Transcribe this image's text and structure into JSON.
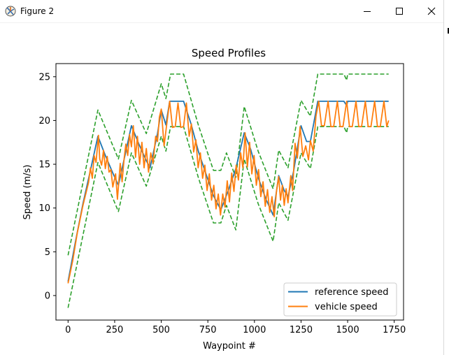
{
  "window": {
    "title": "Figure 2",
    "controls": [
      "minimize",
      "maximize",
      "close"
    ]
  },
  "chart_data": {
    "type": "line",
    "title": "Speed Profiles",
    "xlabel": "Waypoint #",
    "ylabel": "Speed (m/s)",
    "xlim": [
      -65,
      1800
    ],
    "ylim": [
      -2.8,
      26.5
    ],
    "xticks": [
      0,
      250,
      500,
      750,
      1000,
      1250,
      1500,
      1750
    ],
    "yticks": [
      0,
      5,
      10,
      15,
      20,
      25
    ],
    "grid": false,
    "legend_position": "lower-right",
    "colors": {
      "reference": "#1f77b4",
      "vehicle": "#ff7f0e",
      "bounds": "#2ca02c"
    },
    "series": [
      {
        "name": "reference speed",
        "style": "solid",
        "color": "#1f77b4",
        "points": [
          [
            0,
            1.6
          ],
          [
            40,
            6.2
          ],
          [
            80,
            10.5
          ],
          [
            120,
            14.3
          ],
          [
            160,
            18.2
          ],
          [
            200,
            16.0
          ],
          [
            240,
            14.0
          ],
          [
            270,
            12.6
          ],
          [
            300,
            15.5
          ],
          [
            340,
            19.4
          ],
          [
            380,
            17.3
          ],
          [
            420,
            15.4
          ],
          [
            440,
            14.6
          ],
          [
            480,
            18.5
          ],
          [
            500,
            21.2
          ],
          [
            525,
            19.5
          ],
          [
            545,
            22.2
          ],
          [
            620,
            22.2
          ],
          [
            660,
            19.6
          ],
          [
            700,
            16.4
          ],
          [
            740,
            13.9
          ],
          [
            780,
            11.4
          ],
          [
            820,
            9.8
          ],
          [
            860,
            12.0
          ],
          [
            900,
            14.5
          ],
          [
            945,
            18.6
          ],
          [
            980,
            16.7
          ],
          [
            1020,
            13.5
          ],
          [
            1060,
            11.1
          ],
          [
            1100,
            9.2
          ],
          [
            1130,
            13.7
          ],
          [
            1160,
            12.0
          ],
          [
            1180,
            11.3
          ],
          [
            1210,
            14.2
          ],
          [
            1250,
            19.4
          ],
          [
            1280,
            17.6
          ],
          [
            1300,
            17.6
          ],
          [
            1340,
            22.2
          ],
          [
            1480,
            22.2
          ],
          [
            1495,
            21.7
          ],
          [
            1500,
            22.2
          ],
          [
            1720,
            22.2
          ]
        ]
      },
      {
        "name": "vehicle speed",
        "style": "solid",
        "color": "#ff7f0e",
        "points": [
          [
            0,
            1.4
          ],
          [
            25,
            4.0
          ],
          [
            50,
            7.2
          ],
          [
            80,
            10.3
          ],
          [
            110,
            12.9
          ],
          [
            120,
            14.6
          ],
          [
            130,
            13.4
          ],
          [
            140,
            16.0
          ],
          [
            150,
            15.2
          ],
          [
            163,
            18.3
          ],
          [
            170,
            15.6
          ],
          [
            180,
            14.9
          ],
          [
            190,
            16.6
          ],
          [
            200,
            14.5
          ],
          [
            210,
            15.9
          ],
          [
            220,
            14.1
          ],
          [
            230,
            14.4
          ],
          [
            240,
            12.4
          ],
          [
            255,
            13.9
          ],
          [
            265,
            11.0
          ],
          [
            280,
            15.1
          ],
          [
            290,
            13.0
          ],
          [
            300,
            15.5
          ],
          [
            310,
            17.3
          ],
          [
            320,
            16.0
          ],
          [
            330,
            18.4
          ],
          [
            340,
            17.0
          ],
          [
            350,
            19.4
          ],
          [
            362,
            15.8
          ],
          [
            372,
            18.2
          ],
          [
            384,
            15.0
          ],
          [
            396,
            17.5
          ],
          [
            408,
            14.6
          ],
          [
            420,
            16.8
          ],
          [
            432,
            14.1
          ],
          [
            444,
            16.3
          ],
          [
            456,
            15.1
          ],
          [
            470,
            18.2
          ],
          [
            480,
            17.6
          ],
          [
            490,
            20.4
          ],
          [
            500,
            21.3
          ],
          [
            515,
            17.1
          ],
          [
            530,
            19.7
          ],
          [
            545,
            22.2
          ],
          [
            560,
            19.2
          ],
          [
            575,
            19.3
          ],
          [
            590,
            22.0
          ],
          [
            605,
            19.2
          ],
          [
            620,
            19.3
          ],
          [
            635,
            22.0
          ],
          [
            650,
            18.2
          ],
          [
            662,
            19.6
          ],
          [
            674,
            16.4
          ],
          [
            686,
            17.8
          ],
          [
            698,
            14.6
          ],
          [
            710,
            16.3
          ],
          [
            722,
            13.4
          ],
          [
            734,
            14.9
          ],
          [
            746,
            12.0
          ],
          [
            758,
            13.9
          ],
          [
            770,
            10.9
          ],
          [
            782,
            12.6
          ],
          [
            794,
            9.9
          ],
          [
            806,
            11.6
          ],
          [
            818,
            9.2
          ],
          [
            830,
            11.6
          ],
          [
            842,
            10.1
          ],
          [
            854,
            13.1
          ],
          [
            866,
            10.7
          ],
          [
            878,
            14.0
          ],
          [
            890,
            11.9
          ],
          [
            902,
            14.9
          ],
          [
            914,
            13.2
          ],
          [
            926,
            16.3
          ],
          [
            938,
            14.6
          ],
          [
            950,
            18.6
          ],
          [
            962,
            14.7
          ],
          [
            974,
            17.5
          ],
          [
            986,
            13.9
          ],
          [
            998,
            16.0
          ],
          [
            1010,
            12.6
          ],
          [
            1022,
            14.4
          ],
          [
            1034,
            11.3
          ],
          [
            1046,
            13.0
          ],
          [
            1058,
            10.2
          ],
          [
            1070,
            12.1
          ],
          [
            1082,
            9.5
          ],
          [
            1094,
            11.3
          ],
          [
            1106,
            9.0
          ],
          [
            1118,
            11.9
          ],
          [
            1130,
            13.6
          ],
          [
            1140,
            10.9
          ],
          [
            1150,
            12.6
          ],
          [
            1160,
            10.3
          ],
          [
            1170,
            12.2
          ],
          [
            1180,
            10.6
          ],
          [
            1195,
            13.7
          ],
          [
            1205,
            12.0
          ],
          [
            1218,
            17.4
          ],
          [
            1230,
            15.7
          ],
          [
            1245,
            19.3
          ],
          [
            1260,
            15.9
          ],
          [
            1275,
            17.1
          ],
          [
            1290,
            15.5
          ],
          [
            1300,
            17.7
          ],
          [
            1315,
            16.5
          ],
          [
            1330,
            20.5
          ],
          [
            1345,
            22.2
          ],
          [
            1360,
            19.4
          ],
          [
            1375,
            19.4
          ],
          [
            1395,
            22.2
          ],
          [
            1410,
            19.3
          ],
          [
            1425,
            19.3
          ],
          [
            1445,
            22.2
          ],
          [
            1460,
            19.3
          ],
          [
            1475,
            19.3
          ],
          [
            1495,
            22.2
          ],
          [
            1510,
            19.3
          ],
          [
            1525,
            19.3
          ],
          [
            1545,
            22.2
          ],
          [
            1560,
            19.3
          ],
          [
            1575,
            19.3
          ],
          [
            1595,
            22.2
          ],
          [
            1610,
            19.3
          ],
          [
            1625,
            19.3
          ],
          [
            1645,
            22.2
          ],
          [
            1660,
            19.3
          ],
          [
            1675,
            19.3
          ],
          [
            1695,
            22.2
          ],
          [
            1710,
            19.3
          ],
          [
            1720,
            20.0
          ]
        ]
      },
      {
        "style": "dashed",
        "color": "#2ca02c",
        "points": [
          [
            0,
            4.6
          ],
          [
            160,
            21.2
          ],
          [
            270,
            15.6
          ],
          [
            340,
            22.3
          ],
          [
            420,
            18.5
          ],
          [
            500,
            24.2
          ],
          [
            525,
            22.5
          ],
          [
            550,
            25.3
          ],
          [
            620,
            25.3
          ],
          [
            700,
            19.4
          ],
          [
            780,
            14.3
          ],
          [
            820,
            14.3
          ],
          [
            850,
            16.3
          ],
          [
            900,
            13.5
          ],
          [
            945,
            21.6
          ],
          [
            1020,
            16.5
          ],
          [
            1100,
            12.2
          ],
          [
            1130,
            16.6
          ],
          [
            1180,
            14.6
          ],
          [
            1250,
            22.3
          ],
          [
            1300,
            20.5
          ],
          [
            1340,
            25.3
          ],
          [
            1480,
            25.3
          ],
          [
            1495,
            24.6
          ],
          [
            1500,
            25.3
          ],
          [
            1720,
            25.3
          ]
        ]
      },
      {
        "style": "dashed",
        "color": "#2ca02c",
        "points": [
          [
            0,
            -1.4
          ],
          [
            160,
            15.2
          ],
          [
            270,
            9.6
          ],
          [
            340,
            16.3
          ],
          [
            420,
            12.5
          ],
          [
            500,
            18.2
          ],
          [
            525,
            16.5
          ],
          [
            550,
            19.3
          ],
          [
            620,
            19.3
          ],
          [
            700,
            13.4
          ],
          [
            780,
            8.3
          ],
          [
            820,
            8.3
          ],
          [
            850,
            10.3
          ],
          [
            900,
            7.5
          ],
          [
            945,
            15.6
          ],
          [
            1020,
            10.5
          ],
          [
            1100,
            6.2
          ],
          [
            1130,
            10.6
          ],
          [
            1180,
            8.6
          ],
          [
            1250,
            16.3
          ],
          [
            1300,
            14.5
          ],
          [
            1340,
            19.3
          ],
          [
            1480,
            19.3
          ],
          [
            1495,
            18.6
          ],
          [
            1500,
            19.3
          ],
          [
            1720,
            19.3
          ]
        ]
      }
    ],
    "legend": [
      {
        "label": "reference speed",
        "color": "#1f77b4"
      },
      {
        "label": "vehicle speed",
        "color": "#ff7f0e"
      }
    ]
  }
}
